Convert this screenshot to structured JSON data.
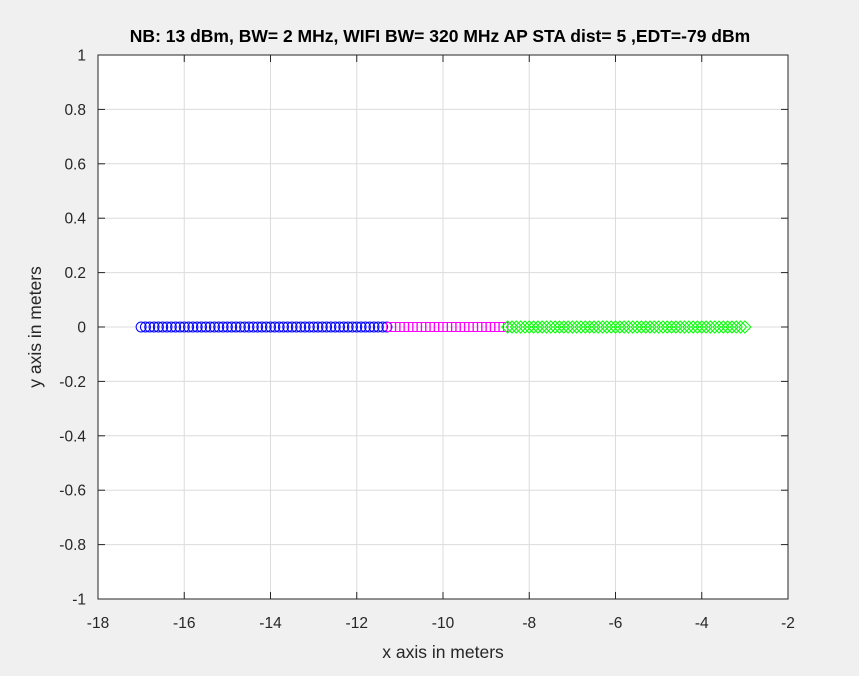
{
  "chart_data": {
    "type": "scatter",
    "title": "NB: 13 dBm, BW= 2 MHz, WIFI BW= 320 MHz AP STA dist= 5 ,EDT=-79 dBm",
    "xlabel": "x axis in meters",
    "ylabel": "y axis in meters",
    "xlim": [
      -18,
      -2
    ],
    "ylim": [
      -1,
      1
    ],
    "xticks": [
      -18,
      -16,
      -14,
      -12,
      -10,
      -8,
      -6,
      -4,
      -2
    ],
    "yticks": [
      -1,
      -0.8,
      -0.6,
      -0.4,
      -0.2,
      0,
      0.2,
      0.4,
      0.6,
      0.8,
      1
    ],
    "xtick_labels": [
      "-18",
      "-16",
      "-14",
      "-12",
      "-10",
      "-8",
      "-6",
      "-4",
      "-2"
    ],
    "ytick_labels": [
      "-1",
      "-0.8",
      "-0.6",
      "-0.4",
      "-0.2",
      "0",
      "0.2",
      "0.4",
      "0.6",
      "0.8",
      "1"
    ],
    "grid": true,
    "series": [
      {
        "marker": "circle",
        "color": "#0000ff",
        "x_start": -17.0,
        "x_end": -11.3,
        "x_step": 0.1,
        "y": 0
      },
      {
        "marker": "square",
        "color": "#ff00ff",
        "x_start": -11.2,
        "x_end": -8.6,
        "x_step": 0.1,
        "y": 0
      },
      {
        "marker": "diamond",
        "color": "#00ff00",
        "x_start": -8.5,
        "x_end": -3.0,
        "x_step": 0.1,
        "y": 0
      }
    ]
  }
}
